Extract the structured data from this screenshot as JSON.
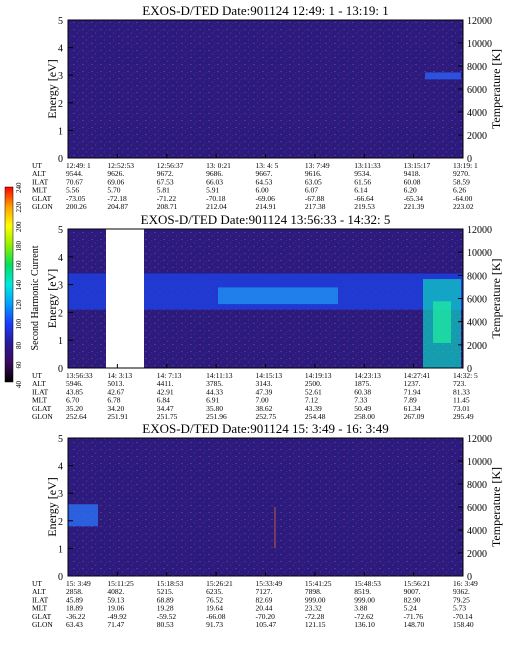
{
  "chart_data": [
    {
      "type": "heatmap",
      "title": "EXOS-D/TED   Date:901124  12:49: 1 - 13:19: 1",
      "ylabel": "Energy [eV]",
      "y2label": "Temperature [K]",
      "yticks": [
        "0",
        "1",
        "2",
        "3",
        "4",
        "5"
      ],
      "y2ticks": [
        "0",
        "2000",
        "4000",
        "6000",
        "8000",
        "10000",
        "12000"
      ],
      "ylim": [
        0,
        5
      ],
      "y2lim": [
        0,
        12000
      ],
      "ephemeris_labels": [
        "UT",
        "ALT",
        "ILAT",
        "MLT",
        "GLAT",
        "GLON"
      ],
      "ephemeris": [
        [
          "12:49: 1",
          "9544.",
          "70.67",
          "5.56",
          "-73.05",
          "200.26"
        ],
        [
          "12:52:53",
          "9626.",
          "69.06",
          "5.70",
          "-72.18",
          "204.87"
        ],
        [
          "12:56:37",
          "9672.",
          "67.53",
          "5.81",
          "-71.22",
          "208.71"
        ],
        [
          "13: 0:21",
          "9686.",
          "66.03",
          "5.91",
          "-70.18",
          "212.04"
        ],
        [
          "13: 4: 5",
          "9667.",
          "64.53",
          "6.00",
          "-69.06",
          "214.91"
        ],
        [
          "13: 7:49",
          "9616.",
          "63.05",
          "6.07",
          "-67.88",
          "217.38"
        ],
        [
          "13:11:33",
          "9534.",
          "61.56",
          "6.14",
          "-66.64",
          "219.53"
        ],
        [
          "13:15:17",
          "9418.",
          "60.08",
          "6.20",
          "-65.34",
          "221.39"
        ],
        [
          "13:19: 1",
          "9270.",
          "58.59",
          "6.26",
          "-64.00",
          "223.02"
        ]
      ],
      "background": "#2a1a78"
    },
    {
      "type": "heatmap",
      "title": "EXOS-D/TED   Date:901124  13:56:33 - 14:32: 5",
      "ylabel": "Energy [eV]",
      "y2label": "Temperature [K]",
      "yticks": [
        "0",
        "1",
        "2",
        "3",
        "4",
        "5"
      ],
      "y2ticks": [
        "0",
        "2000",
        "4000",
        "6000",
        "8000",
        "10000",
        "12000"
      ],
      "ylim": [
        0,
        5
      ],
      "y2lim": [
        0,
        12000
      ],
      "colorbar_label": "Second Harmonic Current",
      "colorbar_ticks": [
        "40",
        "60",
        "80",
        "100",
        "120",
        "140",
        "160",
        "180",
        "200",
        "220",
        "240"
      ],
      "ephemeris_labels": [
        "UT",
        "ALT",
        "ILAT",
        "MLT",
        "GLAT",
        "GLON"
      ],
      "ephemeris": [
        [
          "13:56:33",
          "5946.",
          "43.85",
          "6.70",
          "35.20",
          "252.64"
        ],
        [
          "14: 3:13",
          "5013.",
          "42.67",
          "6.78",
          "34.20",
          "251.91"
        ],
        [
          "14: 7:13",
          "4411.",
          "42.91",
          "6.84",
          "34.47",
          "251.75"
        ],
        [
          "14:11:13",
          "3785.",
          "44.33",
          "6.91",
          "35.80",
          "251.96"
        ],
        [
          "14:15:13",
          "3143.",
          "47.39",
          "7.00",
          "38.62",
          "252.75"
        ],
        [
          "14:19:13",
          "2500.",
          "52.61",
          "7.12",
          "43.39",
          "254.48"
        ],
        [
          "14:23:13",
          "1875.",
          "60.38",
          "7.33",
          "50.49",
          "258.00"
        ],
        [
          "14:27:41",
          "1237.",
          "71.94",
          "7.89",
          "61.34",
          "267.09"
        ],
        [
          "14:32: 5",
          "723.",
          "81.33",
          "11.45",
          "73.01",
          "295.49"
        ]
      ],
      "background": "#2a1a78"
    },
    {
      "type": "heatmap",
      "title": "EXOS-D/TED   Date:901124  15: 3:49 - 16: 3:49",
      "ylabel": "Energy [eV]",
      "y2label": "Temperature [K]",
      "yticks": [
        "0",
        "1",
        "2",
        "3",
        "4",
        "5"
      ],
      "y2ticks": [
        "0",
        "2000",
        "4000",
        "6000",
        "8000",
        "10000",
        "12000"
      ],
      "ylim": [
        0,
        5
      ],
      "y2lim": [
        0,
        12000
      ],
      "ephemeris_labels": [
        "UT",
        "ALT",
        "ILAT",
        "MLT",
        "GLAT",
        "GLON"
      ],
      "ephemeris": [
        [
          "15: 3:49",
          "2858.",
          "45.89",
          "18.89",
          "-36.22",
          "63.43"
        ],
        [
          "15:11:25",
          "4082.",
          "59.13",
          "19.06",
          "-49.92",
          "71.47"
        ],
        [
          "15:18:53",
          "5215.",
          "68.89",
          "19.28",
          "-59.52",
          "80.53"
        ],
        [
          "15:26:21",
          "6235.",
          "76.52",
          "19.64",
          "-66.08",
          "91.73"
        ],
        [
          "15:33:49",
          "7127.",
          "82.69",
          "20.44",
          "-70.20",
          "105.47"
        ],
        [
          "15:41:25",
          "7898.",
          "999.00",
          "23.32",
          "-72.28",
          "121.15"
        ],
        [
          "15:48:53",
          "8519.",
          "999.00",
          "3.88",
          "-72.62",
          "136.10"
        ],
        [
          "15:56:21",
          "9007.",
          "82.90",
          "5.24",
          "-71.76",
          "148.70"
        ],
        [
          "16: 3:49",
          "9362.",
          "79.25",
          "5.73",
          "-70.14",
          "158.40"
        ]
      ],
      "background": "#2a1a78"
    }
  ]
}
